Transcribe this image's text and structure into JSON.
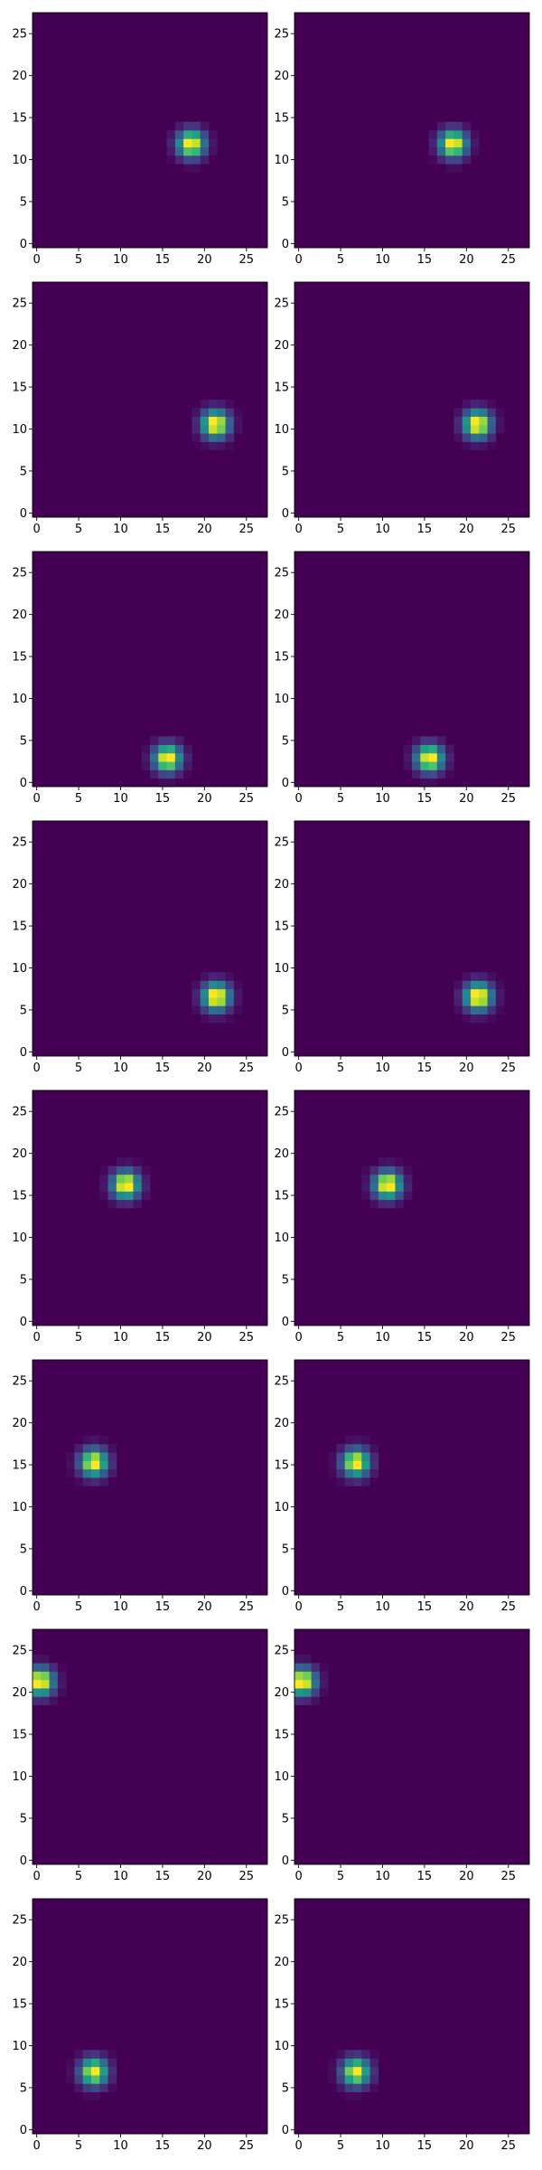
{
  "figure": {
    "colormap": "viridis",
    "background": "#ffffff"
  },
  "chart_data": [
    {
      "type": "heatmap",
      "row": 1,
      "col": 1,
      "grid_size": 28,
      "xlim": [
        -0.5,
        27.5
      ],
      "ylim": [
        -0.5,
        27.5
      ],
      "origin": "lower",
      "blob": {
        "x": 18.4,
        "y": 11.9,
        "sigma": 1.1,
        "peak": 1.0
      },
      "xticks": [
        0,
        5,
        10,
        15,
        20,
        25
      ],
      "yticks": [
        0,
        5,
        10,
        15,
        20,
        25
      ],
      "grid": false
    },
    {
      "type": "heatmap",
      "row": 1,
      "col": 2,
      "grid_size": 28,
      "xlim": [
        -0.5,
        27.5
      ],
      "ylim": [
        -0.5,
        27.5
      ],
      "origin": "lower",
      "blob": {
        "x": 18.4,
        "y": 11.9,
        "sigma": 1.1,
        "peak": 1.0
      },
      "xticks": [
        0,
        5,
        10,
        15,
        20,
        25
      ],
      "yticks": [
        0,
        5,
        10,
        15,
        20,
        25
      ],
      "grid": false
    },
    {
      "type": "heatmap",
      "row": 2,
      "col": 1,
      "grid_size": 28,
      "xlim": [
        -0.5,
        27.5
      ],
      "ylim": [
        -0.5,
        27.5
      ],
      "origin": "lower",
      "blob": {
        "x": 21.3,
        "y": 10.6,
        "sigma": 1.1,
        "peak": 1.0
      },
      "xticks": [
        0,
        5,
        10,
        15,
        20,
        25
      ],
      "yticks": [
        0,
        5,
        10,
        15,
        20,
        25
      ],
      "grid": false
    },
    {
      "type": "heatmap",
      "row": 2,
      "col": 2,
      "grid_size": 28,
      "xlim": [
        -0.5,
        27.5
      ],
      "ylim": [
        -0.5,
        27.5
      ],
      "origin": "lower",
      "blob": {
        "x": 21.3,
        "y": 10.6,
        "sigma": 1.1,
        "peak": 1.0
      },
      "xticks": [
        0,
        5,
        10,
        15,
        20,
        25
      ],
      "yticks": [
        0,
        5,
        10,
        15,
        20,
        25
      ],
      "grid": false
    },
    {
      "type": "heatmap",
      "row": 3,
      "col": 1,
      "grid_size": 28,
      "xlim": [
        -0.5,
        27.5
      ],
      "ylim": [
        -0.5,
        27.5
      ],
      "origin": "lower",
      "blob": {
        "x": 15.6,
        "y": 2.9,
        "sigma": 1.1,
        "peak": 1.0
      },
      "xticks": [
        0,
        5,
        10,
        15,
        20,
        25
      ],
      "yticks": [
        0,
        5,
        10,
        15,
        20,
        25
      ],
      "grid": false
    },
    {
      "type": "heatmap",
      "row": 3,
      "col": 2,
      "grid_size": 28,
      "xlim": [
        -0.5,
        27.5
      ],
      "ylim": [
        -0.5,
        27.5
      ],
      "origin": "lower",
      "blob": {
        "x": 15.6,
        "y": 2.9,
        "sigma": 1.1,
        "peak": 1.0
      },
      "xticks": [
        0,
        5,
        10,
        15,
        20,
        25
      ],
      "yticks": [
        0,
        5,
        10,
        15,
        20,
        25
      ],
      "grid": false
    },
    {
      "type": "heatmap",
      "row": 4,
      "col": 1,
      "grid_size": 28,
      "xlim": [
        -0.5,
        27.5
      ],
      "ylim": [
        -0.5,
        27.5
      ],
      "origin": "lower",
      "blob": {
        "x": 21.4,
        "y": 6.6,
        "sigma": 1.1,
        "peak": 1.0
      },
      "xticks": [
        0,
        5,
        10,
        15,
        20,
        25
      ],
      "yticks": [
        0,
        5,
        10,
        15,
        20,
        25
      ],
      "grid": false
    },
    {
      "type": "heatmap",
      "row": 4,
      "col": 2,
      "grid_size": 28,
      "xlim": [
        -0.5,
        27.5
      ],
      "ylim": [
        -0.5,
        27.5
      ],
      "origin": "lower",
      "blob": {
        "x": 21.4,
        "y": 6.6,
        "sigma": 1.1,
        "peak": 1.0
      },
      "xticks": [
        0,
        5,
        10,
        15,
        20,
        25
      ],
      "yticks": [
        0,
        5,
        10,
        15,
        20,
        25
      ],
      "grid": false
    },
    {
      "type": "heatmap",
      "row": 5,
      "col": 1,
      "grid_size": 28,
      "xlim": [
        -0.5,
        27.5
      ],
      "ylim": [
        -0.5,
        27.5
      ],
      "origin": "lower",
      "blob": {
        "x": 10.6,
        "y": 16.3,
        "sigma": 1.1,
        "peak": 1.0
      },
      "xticks": [
        0,
        5,
        10,
        15,
        20,
        25
      ],
      "yticks": [
        0,
        5,
        10,
        15,
        20,
        25
      ],
      "grid": false
    },
    {
      "type": "heatmap",
      "row": 5,
      "col": 2,
      "grid_size": 28,
      "xlim": [
        -0.5,
        27.5
      ],
      "ylim": [
        -0.5,
        27.5
      ],
      "origin": "lower",
      "blob": {
        "x": 10.6,
        "y": 16.3,
        "sigma": 1.1,
        "peak": 1.0
      },
      "xticks": [
        0,
        5,
        10,
        15,
        20,
        25
      ],
      "yticks": [
        0,
        5,
        10,
        15,
        20,
        25
      ],
      "grid": false
    },
    {
      "type": "heatmap",
      "row": 6,
      "col": 1,
      "grid_size": 28,
      "xlim": [
        -0.5,
        27.5
      ],
      "ylim": [
        -0.5,
        27.5
      ],
      "origin": "lower",
      "blob": {
        "x": 6.8,
        "y": 15.3,
        "sigma": 1.1,
        "peak": 1.0
      },
      "xticks": [
        0,
        5,
        10,
        15,
        20,
        25
      ],
      "yticks": [
        0,
        5,
        10,
        15,
        20,
        25
      ],
      "grid": false
    },
    {
      "type": "heatmap",
      "row": 6,
      "col": 2,
      "grid_size": 28,
      "xlim": [
        -0.5,
        27.5
      ],
      "ylim": [
        -0.5,
        27.5
      ],
      "origin": "lower",
      "blob": {
        "x": 6.8,
        "y": 15.3,
        "sigma": 1.1,
        "peak": 1.0
      },
      "xticks": [
        0,
        5,
        10,
        15,
        20,
        25
      ],
      "yticks": [
        0,
        5,
        10,
        15,
        20,
        25
      ],
      "grid": false
    },
    {
      "type": "heatmap",
      "row": 7,
      "col": 1,
      "grid_size": 28,
      "xlim": [
        -0.5,
        27.5
      ],
      "ylim": [
        -0.5,
        27.5
      ],
      "origin": "lower",
      "blob": {
        "x": 0.4,
        "y": 21.3,
        "sigma": 1.1,
        "peak": 1.0
      },
      "xticks": [
        0,
        5,
        10,
        15,
        20,
        25
      ],
      "yticks": [
        0,
        5,
        10,
        15,
        20,
        25
      ],
      "grid": false
    },
    {
      "type": "heatmap",
      "row": 7,
      "col": 2,
      "grid_size": 28,
      "xlim": [
        -0.5,
        27.5
      ],
      "ylim": [
        -0.5,
        27.5
      ],
      "origin": "lower",
      "blob": {
        "x": 0.4,
        "y": 21.3,
        "sigma": 1.1,
        "peak": 1.0
      },
      "xticks": [
        0,
        5,
        10,
        15,
        20,
        25
      ],
      "yticks": [
        0,
        5,
        10,
        15,
        20,
        25
      ],
      "grid": false
    },
    {
      "type": "heatmap",
      "row": 8,
      "col": 1,
      "grid_size": 28,
      "xlim": [
        -0.5,
        27.5
      ],
      "ylim": [
        -0.5,
        27.5
      ],
      "origin": "lower",
      "blob": {
        "x": 6.8,
        "y": 6.9,
        "sigma": 1.1,
        "peak": 1.0
      },
      "xticks": [
        0,
        5,
        10,
        15,
        20,
        25
      ],
      "yticks": [
        0,
        5,
        10,
        15,
        20,
        25
      ],
      "grid": false
    },
    {
      "type": "heatmap",
      "row": 8,
      "col": 2,
      "grid_size": 28,
      "xlim": [
        -0.5,
        27.5
      ],
      "ylim": [
        -0.5,
        27.5
      ],
      "origin": "lower",
      "blob": {
        "x": 6.8,
        "y": 6.9,
        "sigma": 1.1,
        "peak": 1.0
      },
      "xticks": [
        0,
        5,
        10,
        15,
        20,
        25
      ],
      "yticks": [
        0,
        5,
        10,
        15,
        20,
        25
      ],
      "grid": false
    }
  ]
}
